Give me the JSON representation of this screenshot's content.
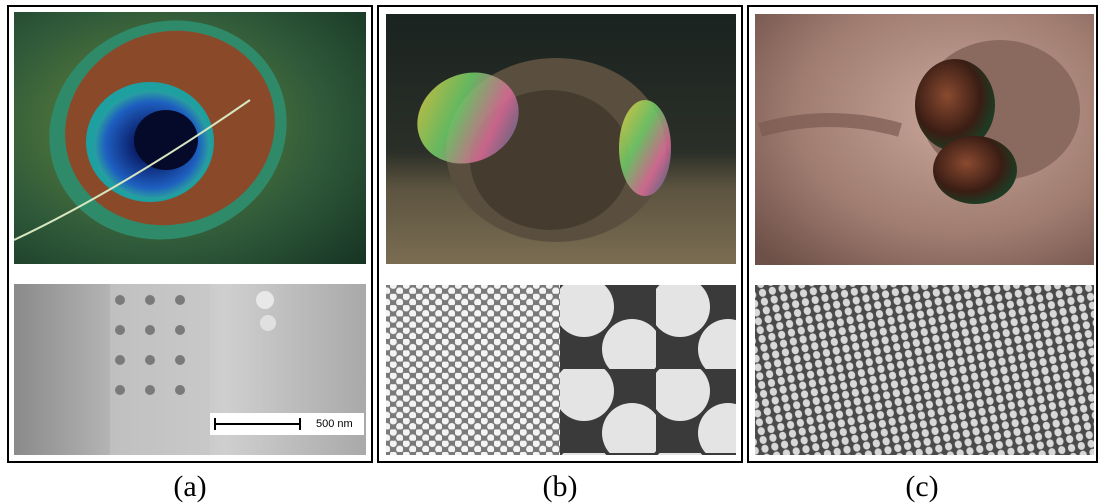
{
  "panels": [
    {
      "label": "(a)",
      "scale_bar": "500 nm"
    },
    {
      "label": "(b)"
    },
    {
      "label": "(c)"
    }
  ]
}
